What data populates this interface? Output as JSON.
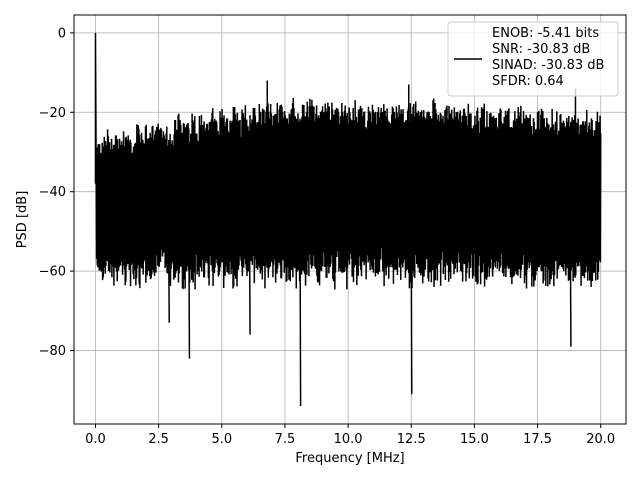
{
  "chart_data": {
    "type": "line",
    "title": "",
    "xlabel": "Frequency [MHz]",
    "ylabel": "PSD [dB]",
    "xlim": [
      -0.85,
      21.0
    ],
    "ylim": [
      -98.5,
      4.5
    ],
    "xticks": [
      0.0,
      2.5,
      5.0,
      7.5,
      10.0,
      12.5,
      15.0,
      17.5,
      20.0
    ],
    "xtick_labels": [
      "0.0",
      "2.5",
      "5.0",
      "7.5",
      "10.0",
      "12.5",
      "15.0",
      "17.5",
      "20.0"
    ],
    "yticks": [
      0,
      -20,
      -40,
      -60,
      -80
    ],
    "ytick_labels": [
      "0",
      "−20",
      "−40",
      "−60",
      "−80"
    ],
    "grid": true,
    "legend_position": "upper right",
    "line_color": "#000000",
    "series": [
      {
        "name": "ENOB: -5.41 bits\nSNR: -30.83 dB\nSINAD: -30.83 dB\nSFDR: 0.64",
        "x_range": [
          0.0,
          20.0
        ],
        "dc_spike": {
          "x": 0.0,
          "y": 0.0
        },
        "upper_envelope": [
          {
            "x": 0.0,
            "y": -24
          },
          {
            "x": 2.5,
            "y": -21
          },
          {
            "x": 5.0,
            "y": -18
          },
          {
            "x": 7.5,
            "y": -16
          },
          {
            "x": 10.0,
            "y": -16
          },
          {
            "x": 12.5,
            "y": -16
          },
          {
            "x": 15.0,
            "y": -17
          },
          {
            "x": 17.5,
            "y": -18
          },
          {
            "x": 20.0,
            "y": -19
          }
        ],
        "lower_envelope_typical": -62,
        "peaks": [
          {
            "x": 6.8,
            "y": -12
          },
          {
            "x": 12.4,
            "y": -13
          },
          {
            "x": 19.0,
            "y": -14
          }
        ],
        "dips": [
          {
            "x": 3.7,
            "y": -82
          },
          {
            "x": 8.1,
            "y": -94
          },
          {
            "x": 12.5,
            "y": -91
          },
          {
            "x": 18.8,
            "y": -79
          },
          {
            "x": 2.9,
            "y": -73
          },
          {
            "x": 6.1,
            "y": -76
          }
        ]
      }
    ],
    "legend_lines": [
      "ENOB: -5.41 bits",
      "SNR: -30.83 dB",
      "SINAD: -30.83 dB",
      "SFDR: 0.64"
    ]
  }
}
